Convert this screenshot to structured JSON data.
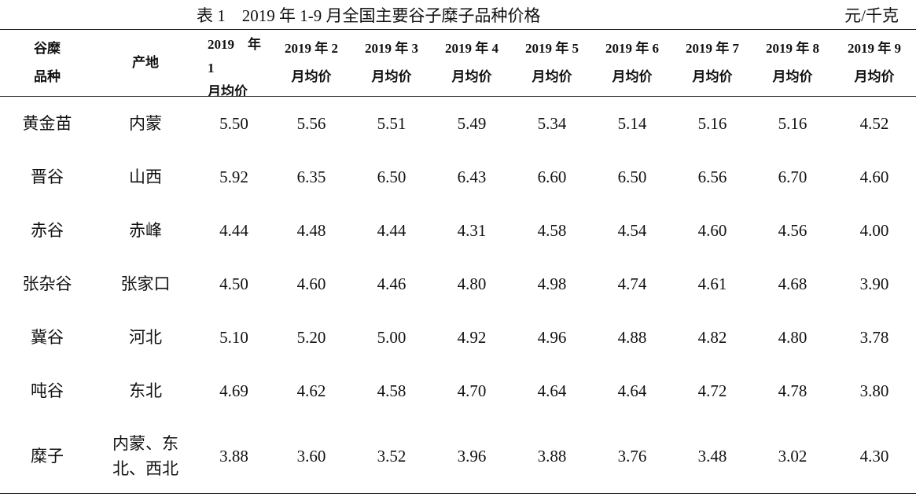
{
  "title": "表 1　2019 年 1-9 月全国主要谷子糜子品种价格",
  "unit": "元/千克",
  "table": {
    "header": [
      "谷糜\n品种",
      "产地",
      "2019　年\n1\n月均价",
      "2019 年 2\n月均价",
      "2019 年 3\n月均价",
      "2019 年 4\n月均价",
      "2019 年 5\n月均价",
      "2019 年 6\n月均价",
      "2019 年 7\n月均价",
      "2019 年 8\n月均价",
      "2019 年 9\n月均价"
    ],
    "rows": [
      [
        "黄金苗",
        "内蒙",
        "5.50",
        "5.56",
        "5.51",
        "5.49",
        "5.34",
        "5.14",
        "5.16",
        "5.16",
        "4.52"
      ],
      [
        "晋谷",
        "山西",
        "5.92",
        "6.35",
        "6.50",
        "6.43",
        "6.60",
        "6.50",
        "6.56",
        "6.70",
        "4.60"
      ],
      [
        "赤谷",
        "赤峰",
        "4.44",
        "4.48",
        "4.44",
        "4.31",
        "4.58",
        "4.54",
        "4.60",
        "4.56",
        "4.00"
      ],
      [
        "张杂谷",
        "张家口",
        "4.50",
        "4.60",
        "4.46",
        "4.80",
        "4.98",
        "4.74",
        "4.61",
        "4.68",
        "3.90"
      ],
      [
        "冀谷",
        "河北",
        "5.10",
        "5.20",
        "5.00",
        "4.92",
        "4.96",
        "4.88",
        "4.82",
        "4.80",
        "3.78"
      ],
      [
        "吨谷",
        "东北",
        "4.69",
        "4.62",
        "4.58",
        "4.70",
        "4.64",
        "4.64",
        "4.72",
        "4.78",
        "3.80"
      ],
      [
        "糜子",
        "内蒙、东\n北、西北",
        "3.88",
        "3.60",
        "3.52",
        "3.96",
        "3.88",
        "3.76",
        "3.48",
        "3.02",
        "4.30"
      ]
    ]
  }
}
